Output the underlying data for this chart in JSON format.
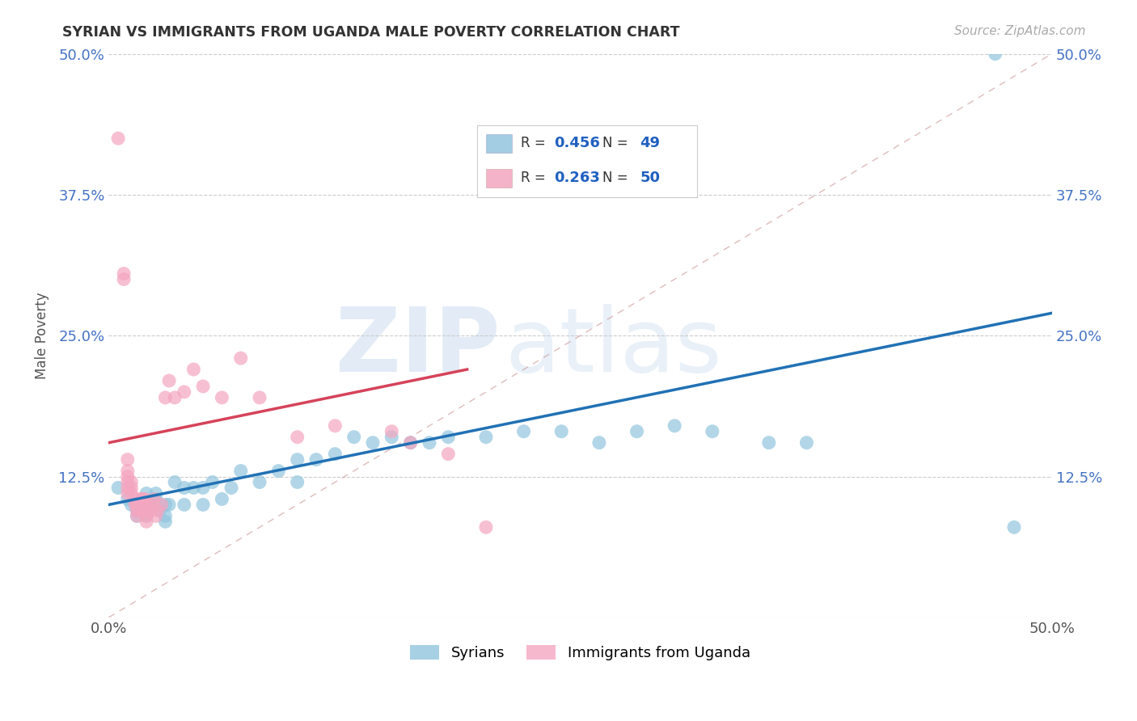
{
  "title": "SYRIAN VS IMMIGRANTS FROM UGANDA MALE POVERTY CORRELATION CHART",
  "source": "Source: ZipAtlas.com",
  "ylabel": "Male Poverty",
  "xlim": [
    0,
    0.5
  ],
  "ylim": [
    0,
    0.5
  ],
  "xtick_labels": [
    "0.0%",
    "50.0%"
  ],
  "ytick_labels": [
    "",
    "12.5%",
    "25.0%",
    "37.5%",
    "50.0%"
  ],
  "yticks": [
    0.0,
    0.125,
    0.25,
    0.375,
    0.5
  ],
  "watermark_zip": "ZIP",
  "watermark_atlas": "atlas",
  "legend_label1": "Syrians",
  "legend_label2": "Immigrants from Uganda",
  "R1": "0.456",
  "N1": "49",
  "R2": "0.263",
  "N2": "50",
  "color_blue": "#92c5de",
  "color_pink": "#f4a6c0",
  "line_blue": "#2171b5",
  "line_pink": "#d6435a",
  "blue_line_x0": 0.0,
  "blue_line_y0": 0.1,
  "blue_line_x1": 0.5,
  "blue_line_y1": 0.27,
  "pink_line_x0": 0.0,
  "pink_line_y0": 0.155,
  "pink_line_x1": 0.19,
  "pink_line_y1": 0.22,
  "syrians_x": [
    0.005,
    0.01,
    0.012,
    0.015,
    0.015,
    0.02,
    0.02,
    0.02,
    0.022,
    0.025,
    0.025,
    0.027,
    0.03,
    0.03,
    0.03,
    0.032,
    0.035,
    0.04,
    0.04,
    0.045,
    0.05,
    0.05,
    0.055,
    0.06,
    0.065,
    0.07,
    0.08,
    0.09,
    0.1,
    0.1,
    0.11,
    0.12,
    0.13,
    0.14,
    0.15,
    0.16,
    0.17,
    0.18,
    0.2,
    0.22,
    0.24,
    0.26,
    0.28,
    0.3,
    0.32,
    0.35,
    0.37,
    0.47,
    0.48
  ],
  "syrians_y": [
    0.115,
    0.105,
    0.1,
    0.09,
    0.095,
    0.09,
    0.095,
    0.11,
    0.1,
    0.105,
    0.11,
    0.095,
    0.085,
    0.09,
    0.1,
    0.1,
    0.12,
    0.1,
    0.115,
    0.115,
    0.1,
    0.115,
    0.12,
    0.105,
    0.115,
    0.13,
    0.12,
    0.13,
    0.12,
    0.14,
    0.14,
    0.145,
    0.16,
    0.155,
    0.16,
    0.155,
    0.155,
    0.16,
    0.16,
    0.165,
    0.165,
    0.155,
    0.165,
    0.17,
    0.165,
    0.155,
    0.155,
    0.5,
    0.08
  ],
  "uganda_x": [
    0.005,
    0.008,
    0.008,
    0.01,
    0.01,
    0.01,
    0.01,
    0.01,
    0.01,
    0.012,
    0.012,
    0.012,
    0.014,
    0.014,
    0.015,
    0.015,
    0.015,
    0.016,
    0.017,
    0.017,
    0.018,
    0.018,
    0.018,
    0.019,
    0.019,
    0.02,
    0.02,
    0.02,
    0.02,
    0.022,
    0.023,
    0.024,
    0.025,
    0.026,
    0.028,
    0.03,
    0.032,
    0.035,
    0.04,
    0.045,
    0.05,
    0.06,
    0.07,
    0.08,
    0.1,
    0.12,
    0.15,
    0.16,
    0.18,
    0.2
  ],
  "uganda_y": [
    0.425,
    0.3,
    0.305,
    0.11,
    0.115,
    0.12,
    0.125,
    0.13,
    0.14,
    0.11,
    0.115,
    0.12,
    0.1,
    0.105,
    0.09,
    0.095,
    0.1,
    0.095,
    0.1,
    0.105,
    0.095,
    0.1,
    0.105,
    0.1,
    0.105,
    0.085,
    0.09,
    0.095,
    0.1,
    0.095,
    0.1,
    0.105,
    0.09,
    0.095,
    0.1,
    0.195,
    0.21,
    0.195,
    0.2,
    0.22,
    0.205,
    0.195,
    0.23,
    0.195,
    0.16,
    0.17,
    0.165,
    0.155,
    0.145,
    0.08
  ]
}
